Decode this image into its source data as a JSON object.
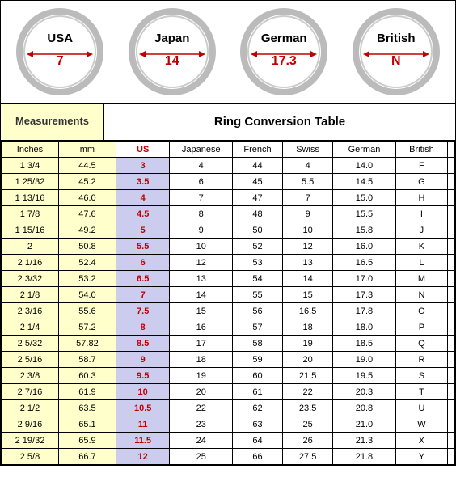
{
  "rings": [
    {
      "country": "USA",
      "value": "7"
    },
    {
      "country": "Japan",
      "value": "14"
    },
    {
      "country": "German",
      "value": "17.3"
    },
    {
      "country": "British",
      "value": "N"
    }
  ],
  "headers": {
    "measurements": "Measurements",
    "conversion": "Ring Conversion Table"
  },
  "columns": [
    "Inches",
    "mm",
    "US",
    "Japanese",
    "French",
    "Swiss",
    "German",
    "British"
  ],
  "rows": [
    [
      "1 3/4",
      "44.5",
      "3",
      "4",
      "44",
      "4",
      "14.0",
      "F"
    ],
    [
      "1 25/32",
      "45.2",
      "3.5",
      "6",
      "45",
      "5.5",
      "14.5",
      "G"
    ],
    [
      "1 13/16",
      "46.0",
      "4",
      "7",
      "47",
      "7",
      "15.0",
      "H"
    ],
    [
      "1 7/8",
      "47.6",
      "4.5",
      "8",
      "48",
      "9",
      "15.5",
      "I"
    ],
    [
      "1 15/16",
      "49.2",
      "5",
      "9",
      "50",
      "10",
      "15.8",
      "J"
    ],
    [
      "2",
      "50.8",
      "5.5",
      "10",
      "52",
      "12",
      "16.0",
      "K"
    ],
    [
      "2 1/16",
      "52.4",
      "6",
      "12",
      "53",
      "13",
      "16.5",
      "L"
    ],
    [
      "2 3/32",
      "53.2",
      "6.5",
      "13",
      "54",
      "14",
      "17.0",
      "M"
    ],
    [
      "2 1/8",
      "54.0",
      "7",
      "14",
      "55",
      "15",
      "17.3",
      "N"
    ],
    [
      "2 3/16",
      "55.6",
      "7.5",
      "15",
      "56",
      "16.5",
      "17.8",
      "O"
    ],
    [
      "2 1/4",
      "57.2",
      "8",
      "16",
      "57",
      "18",
      "18.0",
      "P"
    ],
    [
      "2 5/32",
      "57.82",
      "8.5",
      "17",
      "58",
      "19",
      "18.5",
      "Q"
    ],
    [
      "2 5/16",
      "58.7",
      "9",
      "18",
      "59",
      "20",
      "19.0",
      "R"
    ],
    [
      "2 3/8",
      "60.3",
      "9.5",
      "19",
      "60",
      "21.5",
      "19.5",
      "S"
    ],
    [
      "2 7/16",
      "61.9",
      "10",
      "20",
      "61",
      "22",
      "20.3",
      "T"
    ],
    [
      "2 1/2",
      "63.5",
      "10.5",
      "22",
      "62",
      "23.5",
      "20.8",
      "U"
    ],
    [
      "2 9/16",
      "65.1",
      "11",
      "23",
      "63",
      "25",
      "21.0",
      "W"
    ],
    [
      "2 19/32",
      "65.9",
      "11.5",
      "24",
      "64",
      "26",
      "21.3",
      "X"
    ],
    [
      "2 5/8",
      "66.7",
      "12",
      "25",
      "66",
      "27.5",
      "21.8",
      "Y"
    ]
  ],
  "style": {
    "ring_outer_stroke": "#bbbbbb",
    "ring_inner_stroke": "#cccccc",
    "arrow_color": "#c00000",
    "meas_bg": "#ffffcc",
    "us_bg": "#ccccee",
    "us_color": "#c00000",
    "border_color": "#000000"
  }
}
